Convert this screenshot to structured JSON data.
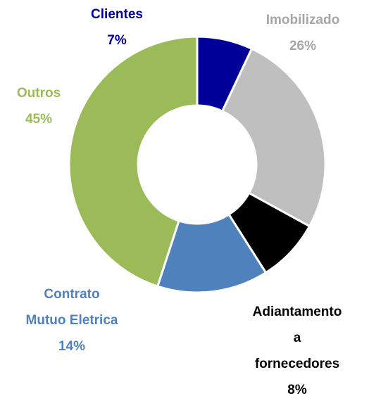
{
  "chart_data": {
    "type": "donut",
    "categories": [
      "Clientes",
      "Imobilizado",
      "Adiantamento a\nfornecedores",
      "Contrato\nMutuo Eletrica",
      "Outros"
    ],
    "values": [
      7,
      26,
      8,
      14,
      45
    ],
    "value_labels": [
      "7%",
      "26%",
      "8%",
      "14%",
      "45%"
    ],
    "colors": [
      "#000099",
      "#bfbfbf",
      "#000000",
      "#4f81bd",
      "#9bbb59"
    ],
    "label_colors": [
      "#000099",
      "#a6a6a6",
      "#000000",
      "#4f81bd",
      "#9bbb59"
    ]
  }
}
